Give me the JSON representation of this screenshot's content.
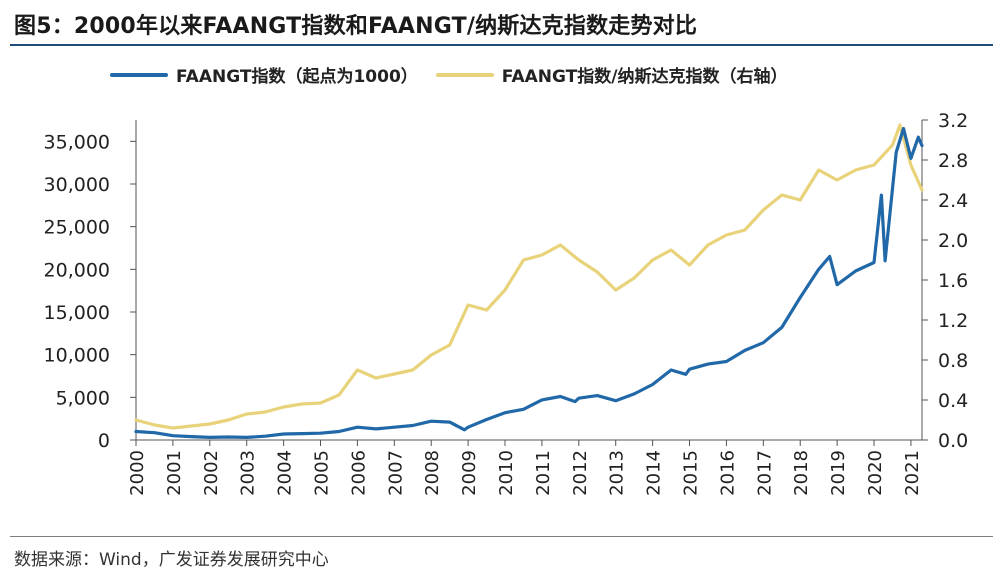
{
  "title": "图5：2000年以来FAANGT指数和FAANGT/纳斯达克指数走势对比",
  "source": "数据来源：Wind，广发证券发展研究中心",
  "colors": {
    "primary": "#2068a8",
    "secondary": "#e8d27a",
    "title_rule": "#1f4e79"
  },
  "chart_data": {
    "type": "line",
    "title": "2000年以来FAANGT指数和FAANGT/纳斯达克指数走势对比",
    "x_ticks": [
      "2000",
      "2001",
      "2002",
      "2003",
      "2004",
      "2005",
      "2006",
      "2007",
      "2008",
      "2009",
      "2010",
      "2011",
      "2012",
      "2013",
      "2014",
      "2015",
      "2016",
      "2017",
      "2018",
      "2019",
      "2020",
      "2021"
    ],
    "xlim": [
      2000,
      2021.3
    ],
    "y_left": {
      "label": "",
      "ylim": [
        0,
        37500
      ],
      "ticks": [
        0,
        5000,
        10000,
        15000,
        20000,
        25000,
        30000,
        35000
      ],
      "tick_labels": [
        "0",
        "5,000",
        "10,000",
        "15,000",
        "20,000",
        "25,000",
        "30,000",
        "35,000"
      ]
    },
    "y_right": {
      "label": "",
      "ylim": [
        0,
        3.2
      ],
      "ticks": [
        0.0,
        0.4,
        0.8,
        1.2,
        1.6,
        2.0,
        2.4,
        2.8,
        3.2
      ],
      "tick_labels": [
        "0.0",
        "0.4",
        "0.8",
        "1.2",
        "1.6",
        "2.0",
        "2.4",
        "2.8",
        "3.2"
      ]
    },
    "series": [
      {
        "name": "FAANGT指数（起点为1000）",
        "axis": "left",
        "color": "#2068a8",
        "x": [
          2000.0,
          2000.5,
          2001.0,
          2001.5,
          2002.0,
          2002.5,
          2003.0,
          2003.5,
          2004.0,
          2004.5,
          2005.0,
          2005.5,
          2006.0,
          2006.5,
          2007.0,
          2007.5,
          2008.0,
          2008.5,
          2008.9,
          2009.0,
          2009.5,
          2010.0,
          2010.5,
          2011.0,
          2011.5,
          2011.9,
          2012.0,
          2012.5,
          2013.0,
          2013.5,
          2014.0,
          2014.5,
          2014.9,
          2015.0,
          2015.5,
          2016.0,
          2016.5,
          2017.0,
          2017.5,
          2018.0,
          2018.5,
          2018.8,
          2019.0,
          2019.5,
          2020.0,
          2020.2,
          2020.3,
          2020.6,
          2020.8,
          2021.0,
          2021.2,
          2021.3
        ],
        "values": [
          1000,
          850,
          500,
          400,
          300,
          350,
          300,
          450,
          700,
          750,
          800,
          1000,
          1500,
          1300,
          1500,
          1700,
          2200,
          2100,
          1200,
          1500,
          2400,
          3200,
          3600,
          4700,
          5100,
          4500,
          4900,
          5200,
          4600,
          5400,
          6500,
          8200,
          7700,
          8300,
          8900,
          9200,
          10500,
          11400,
          13200,
          16700,
          20000,
          21500,
          18200,
          19800,
          20800,
          28700,
          21000,
          33700,
          36500,
          33000,
          35500,
          34500
        ]
      },
      {
        "name": "FAANGT指数/纳斯达克指数（右轴）",
        "axis": "right",
        "color": "#e8d27a",
        "x": [
          2000.0,
          2000.5,
          2001.0,
          2001.5,
          2002.0,
          2002.5,
          2003.0,
          2003.5,
          2004.0,
          2004.5,
          2005.0,
          2005.5,
          2006.0,
          2006.5,
          2007.0,
          2007.5,
          2008.0,
          2008.5,
          2009.0,
          2009.5,
          2010.0,
          2010.5,
          2011.0,
          2011.5,
          2012.0,
          2012.5,
          2013.0,
          2013.5,
          2014.0,
          2014.5,
          2015.0,
          2015.5,
          2016.0,
          2016.5,
          2017.0,
          2017.5,
          2018.0,
          2018.5,
          2019.0,
          2019.5,
          2020.0,
          2020.5,
          2020.7,
          2021.0,
          2021.3
        ],
        "values": [
          0.2,
          0.15,
          0.12,
          0.14,
          0.16,
          0.2,
          0.26,
          0.28,
          0.33,
          0.36,
          0.37,
          0.45,
          0.7,
          0.62,
          0.66,
          0.7,
          0.85,
          0.95,
          1.35,
          1.3,
          1.5,
          1.8,
          1.85,
          1.95,
          1.8,
          1.68,
          1.5,
          1.62,
          1.8,
          1.9,
          1.75,
          1.95,
          2.05,
          2.1,
          2.3,
          2.45,
          2.4,
          2.7,
          2.6,
          2.7,
          2.75,
          2.95,
          3.15,
          2.75,
          2.5
        ]
      }
    ]
  }
}
